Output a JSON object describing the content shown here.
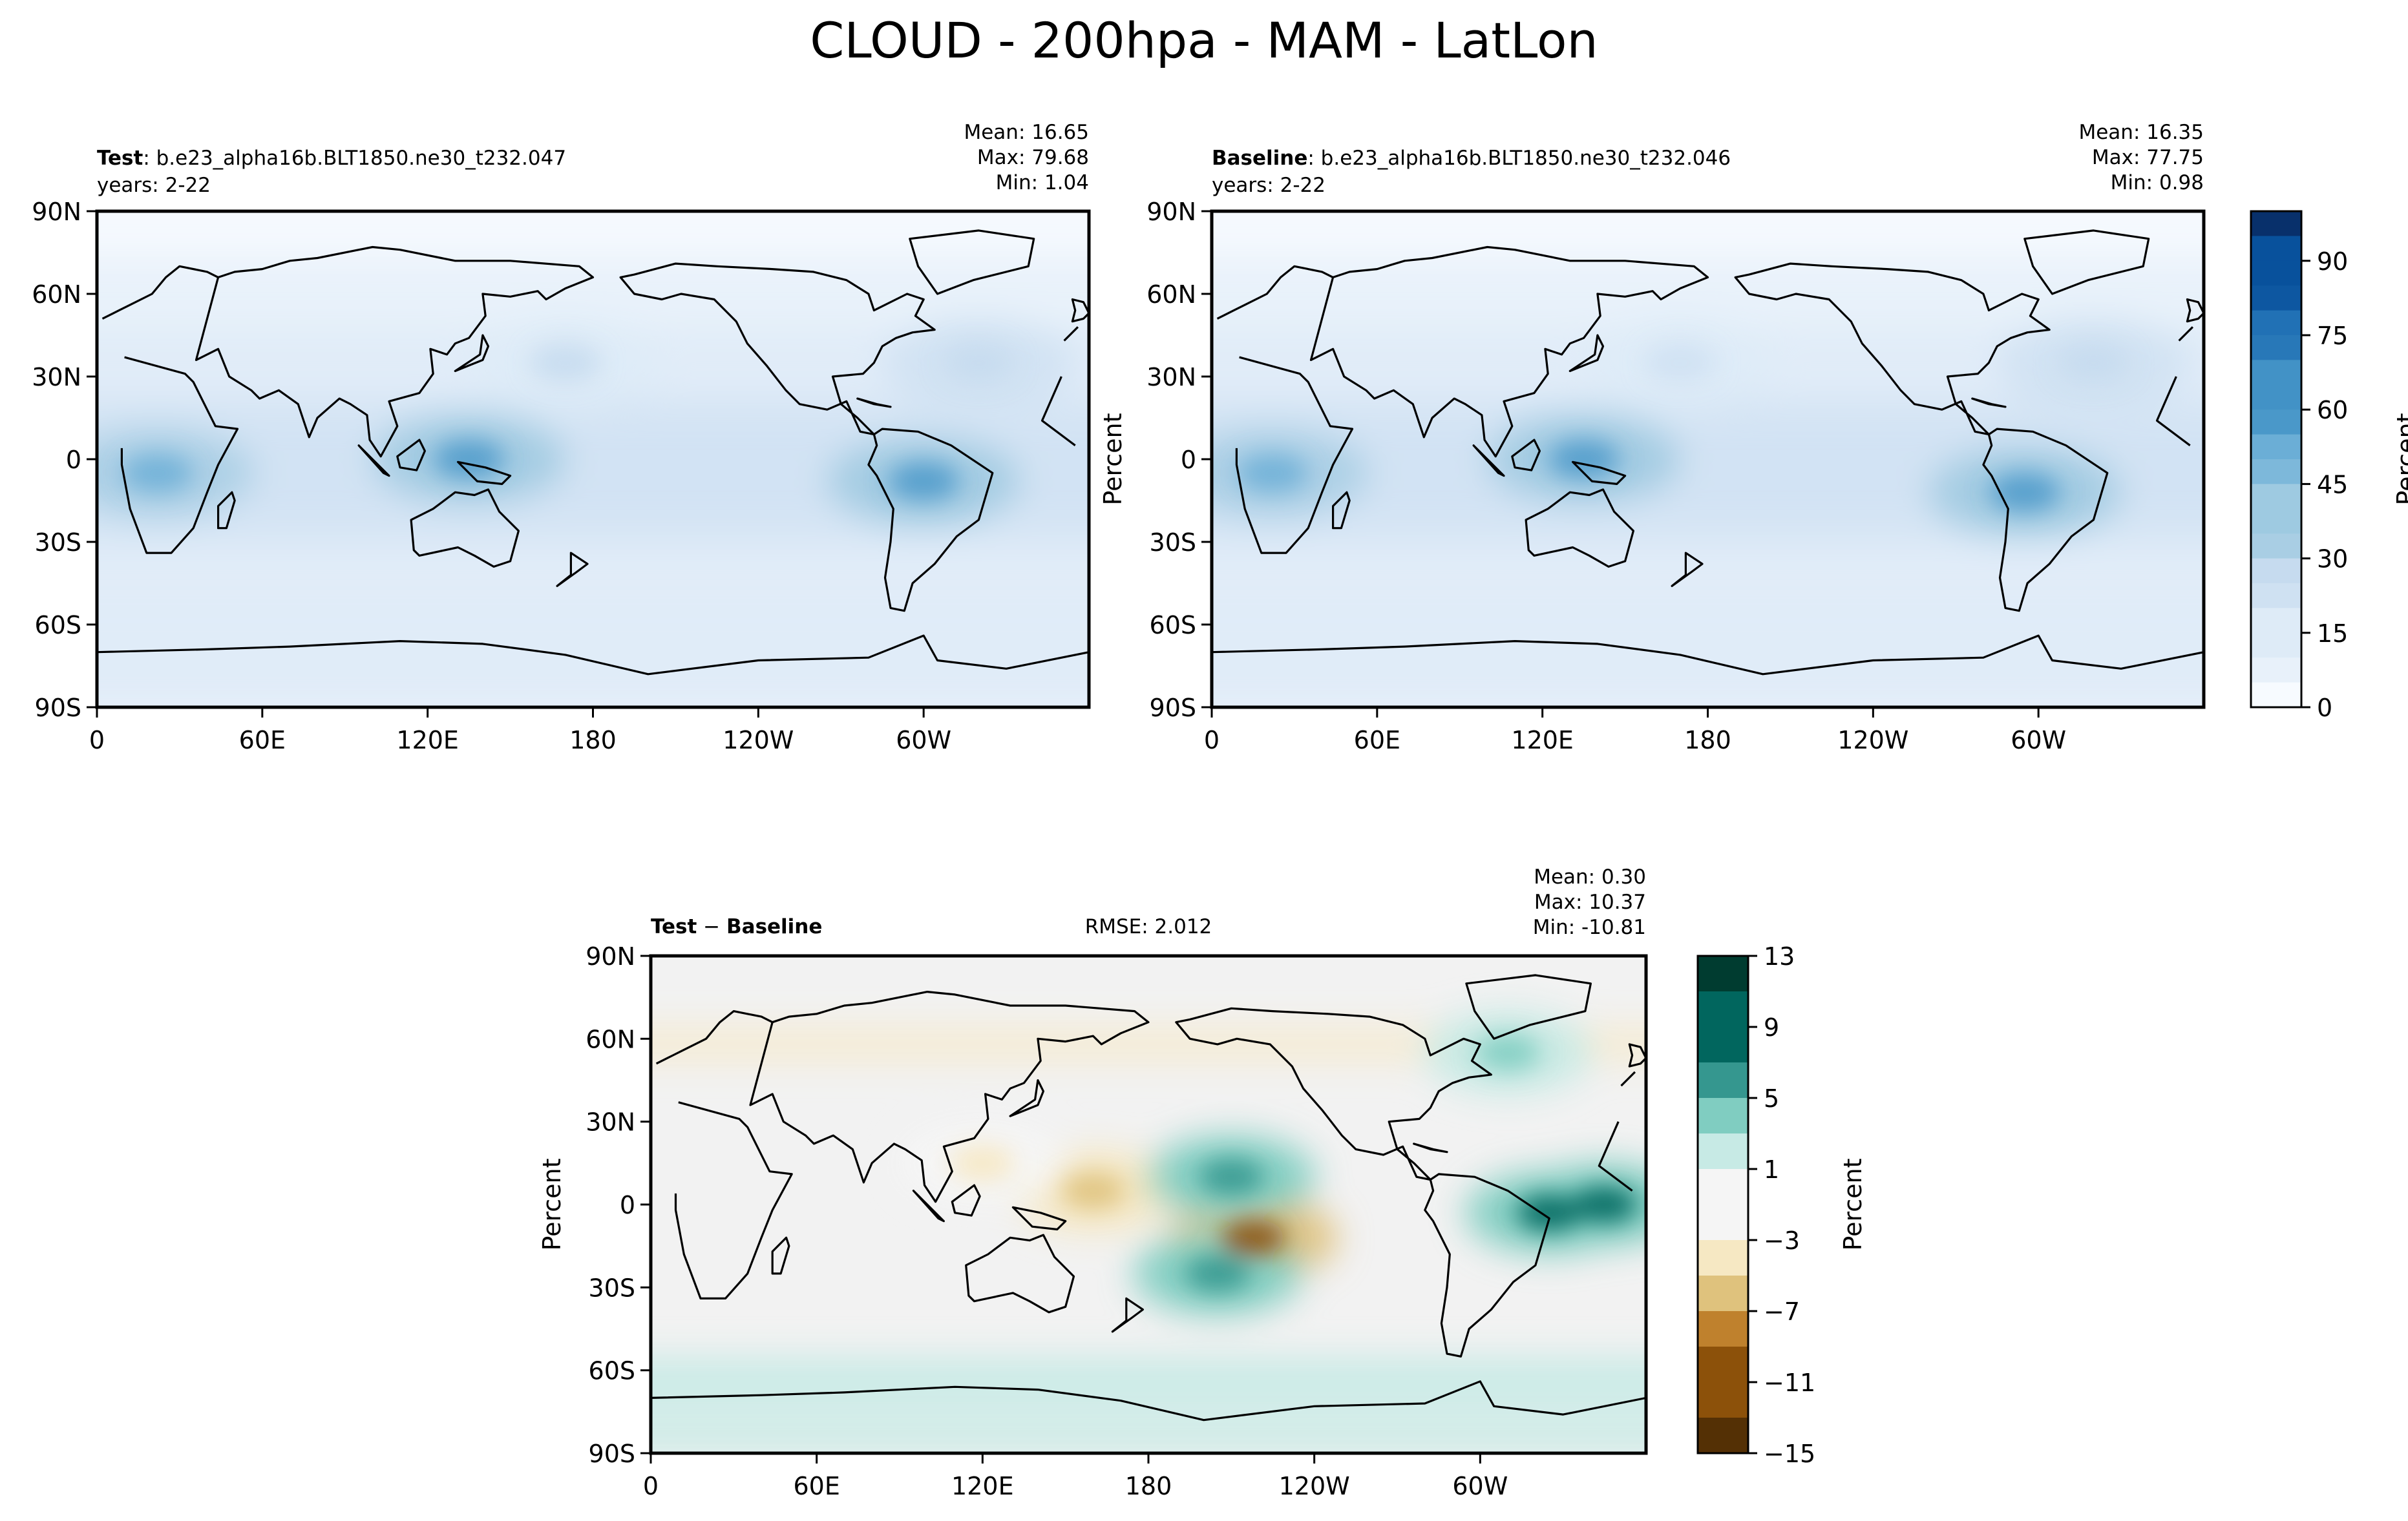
{
  "figure_title": "CLOUD - 200hpa - MAM - LatLon",
  "chart_data": [
    {
      "type": "heatmap",
      "panel": "test",
      "case_label_bold": "Test",
      "case_label_text": ": b.e23_alpha16b.BLT1850.ne30_t232.047",
      "years": "years: 2-22",
      "stats": {
        "mean": "Mean: 16.65",
        "max": "Max: 79.68",
        "min": "Min:  1.04"
      },
      "ylabel": "",
      "x_ticks": [
        "0",
        "60E",
        "120E",
        "180",
        "120W",
        "60W"
      ],
      "y_ticks": [
        "90N",
        "60N",
        "30N",
        "0",
        "30S",
        "60S",
        "90S"
      ],
      "xlim": [
        0,
        360
      ],
      "ylim": [
        -90,
        90
      ],
      "field_mean": 16.65,
      "field_max": 79.68,
      "field_min": 1.04,
      "features": [
        {
          "lon": 135,
          "lat": 0,
          "value": 62
        },
        {
          "lon": 300,
          "lat": -8,
          "value": 60
        },
        {
          "lon": 22,
          "lat": -5,
          "value": 52
        },
        {
          "lon": 320,
          "lat": 35,
          "value": 28
        },
        {
          "lon": 170,
          "lat": 35,
          "value": 25
        }
      ]
    },
    {
      "type": "heatmap",
      "panel": "baseline",
      "case_label_bold": "Baseline",
      "case_label_text": ": b.e23_alpha16b.BLT1850.ne30_t232.046",
      "years": "years: 2-22",
      "stats": {
        "mean": "Mean: 16.35",
        "max": "Max: 77.75",
        "min": "Min:  0.98"
      },
      "ylabel": "Percent",
      "x_ticks": [
        "0",
        "60E",
        "120E",
        "180",
        "120W",
        "60W"
      ],
      "y_ticks": [
        "90N",
        "60N",
        "30N",
        "0",
        "30S",
        "60S",
        "90S"
      ],
      "xlim": [
        0,
        360
      ],
      "ylim": [
        -90,
        90
      ],
      "field_mean": 16.35,
      "field_max": 77.75,
      "field_min": 0.98,
      "colorbar": {
        "label": "Percent",
        "ticks": [
          "0",
          "15",
          "30",
          "45",
          "60",
          "75",
          "90"
        ],
        "range": [
          0,
          100
        ]
      },
      "features": [
        {
          "lon": 135,
          "lat": 0,
          "value": 60
        },
        {
          "lon": 295,
          "lat": -12,
          "value": 62
        },
        {
          "lon": 22,
          "lat": -5,
          "value": 50
        },
        {
          "lon": 320,
          "lat": 35,
          "value": 27
        },
        {
          "lon": 170,
          "lat": 35,
          "value": 24
        }
      ]
    },
    {
      "type": "heatmap",
      "panel": "difference",
      "case_label_bold_a": "Test",
      "case_label_minus": " − ",
      "case_label_bold_b": "Baseline",
      "rmse": "RMSE: 2.012",
      "stats": {
        "mean": "Mean:  0.30",
        "max": "Max: 10.37",
        "min": "Min: -10.81"
      },
      "ylabel": "Percent",
      "x_ticks": [
        "0",
        "60E",
        "120E",
        "180",
        "120W",
        "60W"
      ],
      "y_ticks": [
        "90N",
        "60N",
        "30N",
        "0",
        "30S",
        "60S",
        "90S"
      ],
      "xlim": [
        0,
        360
      ],
      "ylim": [
        -90,
        90
      ],
      "field_mean": 0.3,
      "field_max": 10.37,
      "field_min": -10.81,
      "colorbar": {
        "label": "Percent",
        "ticks": [
          "13",
          "9",
          "5",
          "1",
          "−3",
          "−7",
          "−11",
          "−15"
        ],
        "range": [
          -15,
          13
        ]
      },
      "features": [
        {
          "lon": 218,
          "lat": -12,
          "value": -10.5
        },
        {
          "lon": 160,
          "lat": 5,
          "value": -6
        },
        {
          "lon": 325,
          "lat": -3,
          "value": 9
        },
        {
          "lon": 345,
          "lat": 0,
          "value": 10
        },
        {
          "lon": 205,
          "lat": -25,
          "value": 7
        },
        {
          "lon": 210,
          "lat": 10,
          "value": 6
        },
        {
          "lon": 120,
          "lat": 15,
          "value": -4
        },
        {
          "lon": 310,
          "lat": 55,
          "value": 5
        }
      ]
    }
  ],
  "colors": {
    "blues": [
      "#f7fbff",
      "#e8f1fa",
      "#deebf7",
      "#cfe1f2",
      "#c6dbef",
      "#a9cee4",
      "#9ecae1",
      "#7db8da",
      "#6baed6",
      "#4a98c9",
      "#4292c6",
      "#2878b8",
      "#2171b5",
      "#0d57a1",
      "#08519c",
      "#08306b"
    ],
    "diff": [
      "#003c30",
      "#01665e",
      "#35978f",
      "#80cdc1",
      "#c7eae5",
      "#f5f5f5",
      "#f6e8c3",
      "#dfc27d",
      "#bf812d",
      "#8c510a",
      "#543005"
    ]
  }
}
